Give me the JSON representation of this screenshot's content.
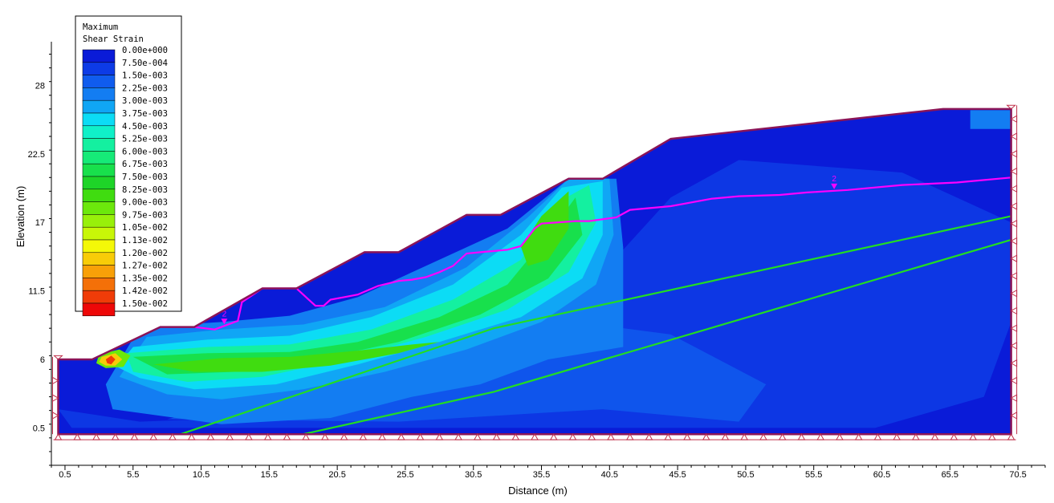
{
  "chart_data": {
    "type": "heatmap",
    "title": "",
    "xlabel": "Distance (m)",
    "ylabel": "Elevation (m)",
    "xlim": [
      -0.5,
      72.5
    ],
    "ylim": [
      -2.5,
      31.5
    ],
    "x_ticks": [
      "0.5",
      "5.5",
      "10.5",
      "15.5",
      "20.5",
      "25.5",
      "30.5",
      "35.5",
      "40.5",
      "45.5",
      "50.5",
      "55.5",
      "60.5",
      "65.5",
      "70.5"
    ],
    "x_tick_values": [
      0.5,
      5.5,
      10.5,
      15.5,
      20.5,
      25.5,
      30.5,
      35.5,
      40.5,
      45.5,
      50.5,
      55.5,
      60.5,
      65.5,
      70.5
    ],
    "y_ticks": [
      "0.5",
      "6",
      "11.5",
      "17",
      "22.5",
      "28"
    ],
    "y_tick_values": [
      0.5,
      6,
      11.5,
      17,
      22.5,
      28
    ],
    "legend": {
      "title_line1": "Maximum",
      "title_line2": "Shear Strain",
      "placement": "top-left",
      "entries": [
        {
          "label": "0.00e+000",
          "color": "#0a1bd8"
        },
        {
          "label": "7.50e-004",
          "color": "#0d3be6"
        },
        {
          "label": "1.50e-003",
          "color": "#105cee"
        },
        {
          "label": "2.25e-003",
          "color": "#137df2"
        },
        {
          "label": "3.00e-003",
          "color": "#10a6f5"
        },
        {
          "label": "3.75e-003",
          "color": "#0cdcf5"
        },
        {
          "label": "4.50e-003",
          "color": "#10f0c8"
        },
        {
          "label": "5.25e-003",
          "color": "#14f0a0"
        },
        {
          "label": "6.00e-003",
          "color": "#16ea78"
        },
        {
          "label": "6.75e-003",
          "color": "#18e04c"
        },
        {
          "label": "7.50e-003",
          "color": "#1ed428"
        },
        {
          "label": "8.25e-003",
          "color": "#40dc10"
        },
        {
          "label": "9.00e-003",
          "color": "#6ce80c"
        },
        {
          "label": "9.75e-003",
          "color": "#98f00a"
        },
        {
          "label": "1.05e-002",
          "color": "#c8f608"
        },
        {
          "label": "1.13e-002",
          "color": "#f4f808"
        },
        {
          "label": "1.20e-002",
          "color": "#f8cc08"
        },
        {
          "label": "1.27e-002",
          "color": "#f8a008"
        },
        {
          "label": "1.35e-002",
          "color": "#f47008"
        },
        {
          "label": "1.42e-002",
          "color": "#f03c08"
        },
        {
          "label": "1.50e-002",
          "color": "#ee0808"
        }
      ]
    },
    "slope_profile": [
      [
        0.0,
        6.0
      ],
      [
        2.5,
        6.0
      ],
      [
        7.5,
        8.6
      ],
      [
        10.0,
        8.6
      ],
      [
        15.0,
        11.7
      ],
      [
        17.5,
        11.7
      ],
      [
        22.5,
        14.6
      ],
      [
        25.0,
        14.6
      ],
      [
        30.0,
        17.6
      ],
      [
        32.5,
        17.6
      ],
      [
        37.5,
        20.5
      ],
      [
        40.0,
        20.5
      ],
      [
        45.0,
        23.7
      ],
      [
        65.0,
        26.1
      ],
      [
        70.0,
        26.1
      ],
      [
        70.0,
        0.0
      ],
      [
        0.0,
        0.0
      ]
    ],
    "material_boundaries": [
      {
        "color": "#22dd22",
        "points": [
          [
            9.0,
            0.0
          ],
          [
            32.0,
            8.5
          ],
          [
            70.0,
            17.5
          ]
        ]
      },
      {
        "color": "#22dd22",
        "points": [
          [
            18.0,
            0.0
          ],
          [
            32.0,
            3.4
          ],
          [
            70.0,
            15.6
          ]
        ]
      }
    ],
    "water_table": {
      "label": "2",
      "label_x": [
        12.2,
        57.0
      ],
      "color": "#ff00ff",
      "points": [
        [
          7.5,
          8.6
        ],
        [
          10.0,
          8.6
        ],
        [
          11.5,
          8.4
        ],
        [
          13.2,
          9.1
        ],
        [
          13.5,
          10.6
        ],
        [
          15.0,
          11.7
        ],
        [
          17.5,
          11.7
        ],
        [
          18.9,
          10.3
        ],
        [
          19.5,
          10.3
        ],
        [
          20.0,
          10.8
        ],
        [
          21.0,
          11.0
        ],
        [
          22.0,
          11.2
        ],
        [
          23.5,
          11.9
        ],
        [
          25.0,
          12.3
        ],
        [
          26.0,
          12.4
        ],
        [
          27.0,
          12.6
        ],
        [
          28.0,
          13.0
        ],
        [
          29.0,
          13.5
        ],
        [
          30.0,
          14.5
        ],
        [
          31.0,
          14.6
        ],
        [
          32.0,
          14.7
        ],
        [
          33.0,
          14.8
        ],
        [
          34.0,
          15.1
        ],
        [
          35.0,
          16.5
        ],
        [
          35.5,
          16.9
        ],
        [
          38.0,
          17.1
        ],
        [
          39.0,
          17.1
        ],
        [
          41.0,
          17.4
        ],
        [
          42.0,
          18.0
        ],
        [
          45.0,
          18.3
        ],
        [
          48.0,
          18.9
        ],
        [
          50.0,
          19.1
        ],
        [
          53.0,
          19.2
        ],
        [
          55.0,
          19.4
        ],
        [
          58.0,
          19.6
        ],
        [
          62.0,
          20.0
        ],
        [
          66.0,
          20.2
        ],
        [
          70.0,
          20.6
        ]
      ]
    },
    "strain_zones": [
      {
        "level": 3,
        "points": [
          [
            6.0,
            8.6
          ],
          [
            12.0,
            9.0
          ],
          [
            17.0,
            9.5
          ],
          [
            22.0,
            11.0
          ],
          [
            27.0,
            13.5
          ],
          [
            33.0,
            16.5
          ],
          [
            37.5,
            20.5
          ],
          [
            41.0,
            20.5
          ],
          [
            41.5,
            15.0
          ],
          [
            41.5,
            7.0
          ],
          [
            36.0,
            6.0
          ],
          [
            31.0,
            4.0
          ],
          [
            26.0,
            3.0
          ],
          [
            20.0,
            1.3
          ],
          [
            12.0,
            0.8
          ],
          [
            4.0,
            2.0
          ],
          [
            3.5,
            4.0
          ]
        ]
      },
      {
        "level": 4,
        "points": [
          [
            6.5,
            7.8
          ],
          [
            12.0,
            8.4
          ],
          [
            18.0,
            8.8
          ],
          [
            24.0,
            10.2
          ],
          [
            30.0,
            13.4
          ],
          [
            34.5,
            17.4
          ],
          [
            37.5,
            20.5
          ],
          [
            40.5,
            20.5
          ],
          [
            40.8,
            16.0
          ],
          [
            39.5,
            12.0
          ],
          [
            35.5,
            9.0
          ],
          [
            30.0,
            6.8
          ],
          [
            24.0,
            5.0
          ],
          [
            18.0,
            3.6
          ],
          [
            12.0,
            2.8
          ],
          [
            8.0,
            3.2
          ],
          [
            4.5,
            4.6
          ]
        ]
      },
      {
        "level": 5,
        "points": [
          [
            5.5,
            7.0
          ],
          [
            11.0,
            7.6
          ],
          [
            17.0,
            7.9
          ],
          [
            23.0,
            9.4
          ],
          [
            29.0,
            12.0
          ],
          [
            34.0,
            16.0
          ],
          [
            37.0,
            19.8
          ],
          [
            40.0,
            20.3
          ],
          [
            40.0,
            16.0
          ],
          [
            38.5,
            12.5
          ],
          [
            34.0,
            9.4
          ],
          [
            28.0,
            7.4
          ],
          [
            22.0,
            5.6
          ],
          [
            16.0,
            4.0
          ],
          [
            10.0,
            3.6
          ],
          [
            6.0,
            4.5
          ],
          [
            4.3,
            5.4
          ]
        ]
      },
      {
        "level": 7,
        "points": [
          [
            5.0,
            6.5
          ],
          [
            11.0,
            7.0
          ],
          [
            17.0,
            7.2
          ],
          [
            23.0,
            8.4
          ],
          [
            29.0,
            10.8
          ],
          [
            34.0,
            14.0
          ],
          [
            36.5,
            18.5
          ],
          [
            39.0,
            20.0
          ],
          [
            39.5,
            17.0
          ],
          [
            37.5,
            13.0
          ],
          [
            33.0,
            10.0
          ],
          [
            27.0,
            7.8
          ],
          [
            21.0,
            6.0
          ],
          [
            15.0,
            4.6
          ],
          [
            9.5,
            4.2
          ],
          [
            5.5,
            5.0
          ]
        ]
      },
      {
        "level": 9,
        "points": [
          [
            5.5,
            6.2
          ],
          [
            11.0,
            6.5
          ],
          [
            17.0,
            6.6
          ],
          [
            22.0,
            7.4
          ],
          [
            28.0,
            9.4
          ],
          [
            33.0,
            12.0
          ],
          [
            36.0,
            16.0
          ],
          [
            38.0,
            19.0
          ],
          [
            38.5,
            16.0
          ],
          [
            36.0,
            12.5
          ],
          [
            31.0,
            9.6
          ],
          [
            25.0,
            7.4
          ],
          [
            19.0,
            6.0
          ],
          [
            13.0,
            5.0
          ],
          [
            8.0,
            4.8
          ]
        ]
      },
      {
        "level": 11,
        "points": [
          [
            7.0,
            5.6
          ],
          [
            12.0,
            6.1
          ],
          [
            17.0,
            6.2
          ],
          [
            22.0,
            6.7
          ],
          [
            26.0,
            7.2
          ],
          [
            28.0,
            7.4
          ],
          [
            25.0,
            6.5
          ],
          [
            20.0,
            5.5
          ],
          [
            15.0,
            5.0
          ],
          [
            10.0,
            5.0
          ]
        ]
      },
      {
        "level": 11,
        "points": [
          [
            34.0,
            15.0
          ],
          [
            35.5,
            17.5
          ],
          [
            37.5,
            19.5
          ],
          [
            37.5,
            16.5
          ],
          [
            36.0,
            14.0
          ],
          [
            34.5,
            13.5
          ]
        ]
      },
      {
        "level": 12,
        "points": [
          [
            3.0,
            6.4
          ],
          [
            4.5,
            6.8
          ],
          [
            5.3,
            6.3
          ],
          [
            4.8,
            5.4
          ],
          [
            3.5,
            5.3
          ],
          [
            2.8,
            5.7
          ]
        ]
      },
      {
        "level": 16,
        "points": [
          [
            3.2,
            6.2
          ],
          [
            4.2,
            6.5
          ],
          [
            4.7,
            6.0
          ],
          [
            4.2,
            5.5
          ],
          [
            3.5,
            5.5
          ],
          [
            3.0,
            5.8
          ]
        ]
      },
      {
        "level": 19,
        "points": [
          [
            3.5,
            6.0
          ],
          [
            3.9,
            6.3
          ],
          [
            4.2,
            6.0
          ],
          [
            3.9,
            5.6
          ],
          [
            3.6,
            5.7
          ]
        ]
      }
    ]
  }
}
